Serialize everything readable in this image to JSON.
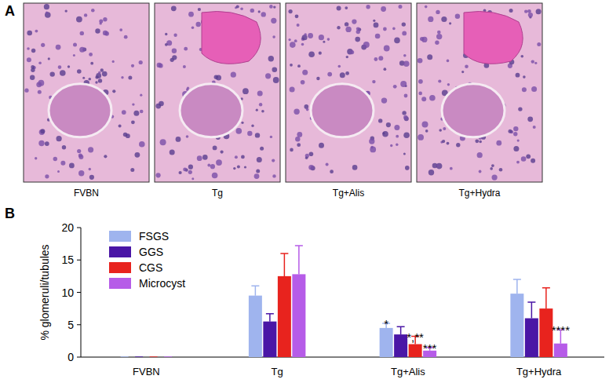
{
  "figure": {
    "panel_labels": [
      "A",
      "B"
    ],
    "image_captions": [
      "FVBN",
      "Tg",
      "Tg+Alis",
      "Tg+Hydra"
    ]
  },
  "chart_data": {
    "type": "bar",
    "y_label": "% glomeruli/tubules",
    "categories": [
      "FVBN",
      "Tg",
      "Tg+Alis",
      "Tg+Hydra"
    ],
    "series": [
      {
        "name": "FSGS",
        "color": "#9fb4ee",
        "values": [
          0,
          9.5,
          4.5,
          9.8
        ],
        "errors": [
          0,
          1.5,
          0.7,
          2.2
        ],
        "annotations": [
          null,
          null,
          "*",
          null
        ]
      },
      {
        "name": "GGS",
        "color": "#4a16a6",
        "values": [
          0,
          5.5,
          3.5,
          6.0
        ],
        "errors": [
          0,
          1.2,
          1.2,
          2.5
        ],
        "annotations": [
          null,
          null,
          null,
          null
        ]
      },
      {
        "name": "CGS",
        "color": "#e8231e",
        "values": [
          0,
          12.5,
          2.0,
          7.5
        ],
        "errors": [
          0,
          3.5,
          1.2,
          3.2
        ],
        "annotations": [
          null,
          null,
          "*,**",
          null
        ]
      },
      {
        "name": "Microcyst",
        "color": "#b65ce8",
        "values": [
          0,
          12.8,
          1.0,
          2.1
        ],
        "errors": [
          0,
          4.4,
          0.5,
          2.1
        ],
        "annotations": [
          null,
          null,
          "***",
          "****"
        ]
      }
    ],
    "ylim": [
      0,
      20
    ],
    "yticks": [
      0,
      5,
      10,
      15,
      20
    ],
    "grid": false,
    "legend": "upper-left"
  }
}
